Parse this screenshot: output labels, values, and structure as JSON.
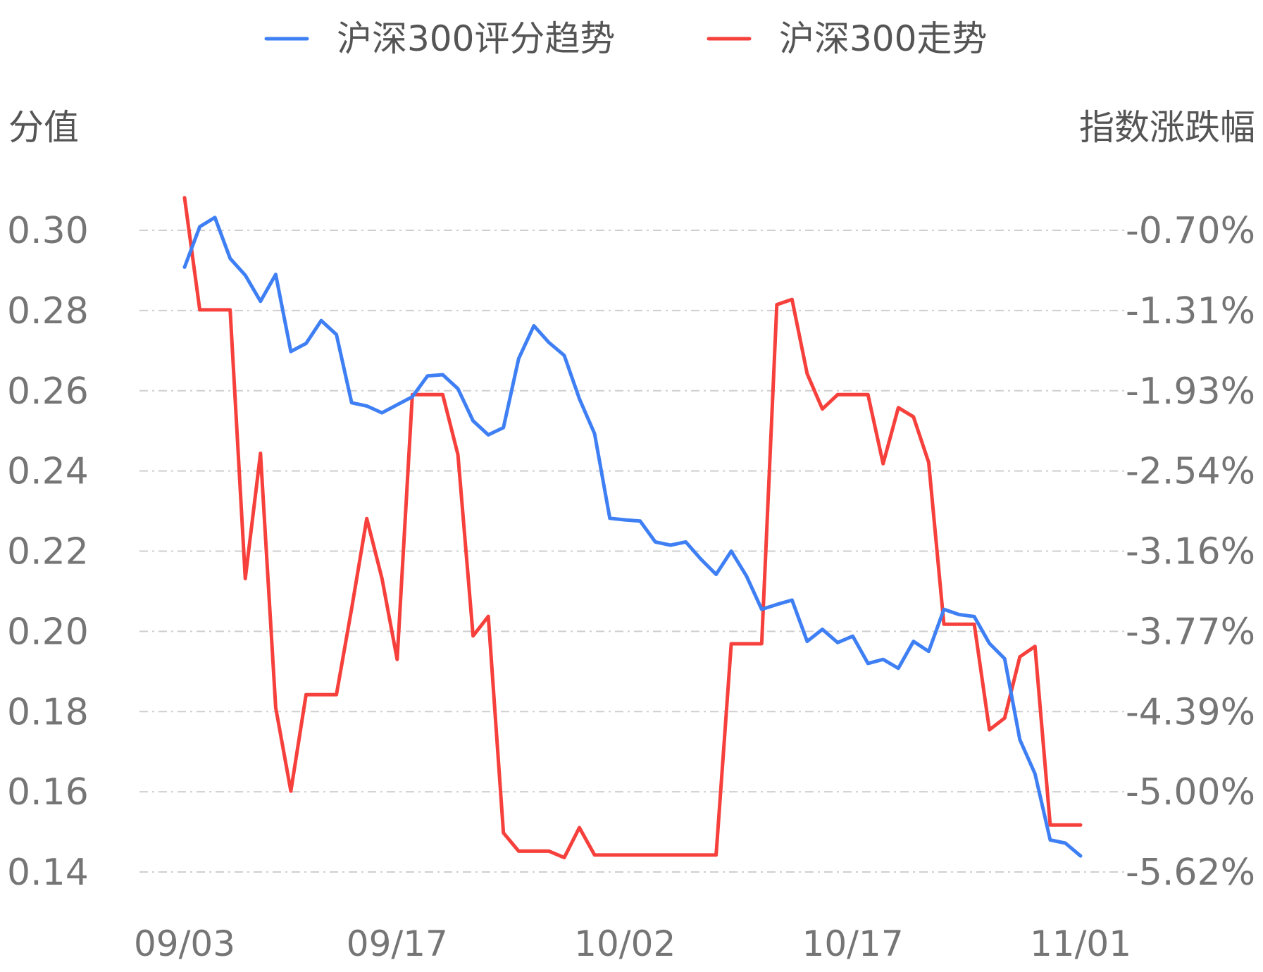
{
  "chart_data": {
    "type": "line",
    "legend_position": "top-center",
    "grid": true,
    "ylabel_left": "分值",
    "ylabel_right": "指数涨跌幅",
    "x_tick_labels": [
      "09/03",
      "09/17",
      "10/02",
      "10/17",
      "11/01"
    ],
    "x_tick_index": [
      0,
      14,
      29,
      44,
      59
    ],
    "ylim_left": [
      0.14,
      0.3
    ],
    "y_ticks_left": [
      "0.30",
      "0.28",
      "0.26",
      "0.24",
      "0.22",
      "0.20",
      "0.18",
      "0.16",
      "0.14"
    ],
    "ylim_right": [
      -5.62,
      -0.7
    ],
    "y_ticks_right": [
      "-0.70%",
      "-1.31%",
      "-1.93%",
      "-2.54%",
      "-3.16%",
      "-3.77%",
      "-4.39%",
      "-5.00%",
      "-5.62%"
    ],
    "series": [
      {
        "name": "沪深300评分趋势",
        "axis": "left",
        "color": "#3f7ff4",
        "values": [
          0.2908,
          0.3009,
          0.3032,
          0.293,
          0.2888,
          0.2823,
          0.289,
          0.2698,
          0.2718,
          0.2775,
          0.274,
          0.257,
          0.2562,
          0.2545,
          0.2565,
          0.2585,
          0.2637,
          0.264,
          0.2605,
          0.2525,
          0.249,
          0.2508,
          0.268,
          0.2762,
          0.272,
          0.2688,
          0.258,
          0.2493,
          0.2282,
          0.2278,
          0.2275,
          0.2223,
          0.2215,
          0.2223,
          0.218,
          0.2142,
          0.22,
          0.2138,
          0.2055,
          0.2067,
          0.2078,
          0.1975,
          0.2005,
          0.1972,
          0.1988,
          0.192,
          0.193,
          0.1908,
          0.1975,
          0.195,
          0.2055,
          0.2042,
          0.2037,
          0.197,
          0.1932,
          0.173,
          0.1645,
          0.148,
          0.1472,
          0.144
        ]
      },
      {
        "name": "沪深300走势",
        "axis": "right",
        "color": "#f6403c",
        "values": [
          -0.45,
          -1.31,
          -1.31,
          -1.31,
          -3.37,
          -2.41,
          -4.36,
          -5.0,
          -4.26,
          -4.26,
          -4.26,
          -3.6,
          -2.91,
          -3.37,
          -3.99,
          -1.96,
          -1.96,
          -1.96,
          -2.42,
          -3.81,
          -3.66,
          -5.32,
          -5.46,
          -5.46,
          -5.46,
          -5.51,
          -5.28,
          -5.49,
          -5.49,
          -5.49,
          -5.49,
          -5.49,
          -5.49,
          -5.49,
          -5.49,
          -5.49,
          -3.87,
          -3.87,
          -3.87,
          -1.27,
          -1.23,
          -1.8,
          -2.07,
          -1.96,
          -1.96,
          -1.96,
          -2.49,
          -2.06,
          -2.13,
          -2.48,
          -3.72,
          -3.72,
          -3.72,
          -4.53,
          -4.44,
          -3.97,
          -3.89,
          -5.26,
          -5.26,
          -5.26
        ]
      }
    ]
  }
}
